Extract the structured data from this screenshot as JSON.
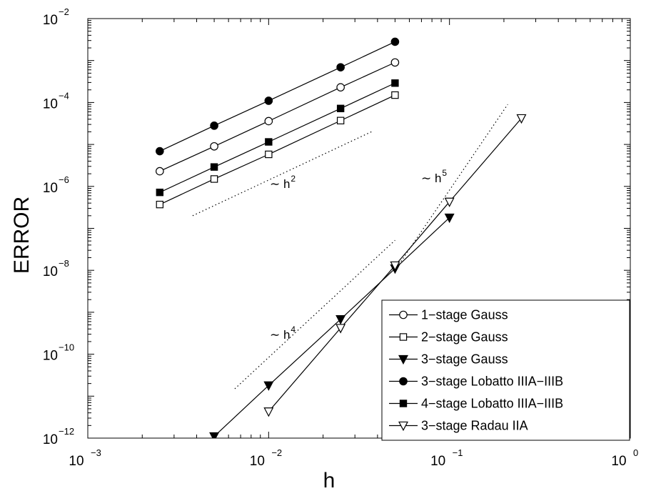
{
  "chart_data": {
    "type": "line",
    "xscale": "log",
    "yscale": "log",
    "xlabel": "h",
    "ylabel": "ERROR",
    "xlim": [
      0.001,
      1
    ],
    "ylim": [
      1e-12,
      0.01
    ],
    "xticks": [
      {
        "base": "10",
        "exp": "−3",
        "value": 0.001
      },
      {
        "base": "10",
        "exp": "−2",
        "value": 0.01
      },
      {
        "base": "10",
        "exp": "−1",
        "value": 0.1
      },
      {
        "base": "10",
        "exp": "0",
        "value": 1
      }
    ],
    "yticks": [
      {
        "base": "10",
        "exp": "−12",
        "value": 1e-12
      },
      {
        "base": "10",
        "exp": "−10",
        "value": 1e-10
      },
      {
        "base": "10",
        "exp": "−8",
        "value": 1e-08
      },
      {
        "base": "10",
        "exp": "−6",
        "value": 1e-06
      },
      {
        "base": "10",
        "exp": "−4",
        "value": 0.0001
      },
      {
        "base": "10",
        "exp": "−2",
        "value": 0.01
      }
    ],
    "legend_position": "lower-right",
    "series": [
      {
        "name": "1−stage Gauss",
        "marker": "circle-open",
        "x": [
          0.0025,
          0.005,
          0.01,
          0.025,
          0.05
        ],
        "y": [
          2.3e-06,
          9e-06,
          3.6e-05,
          0.00023,
          0.0009
        ]
      },
      {
        "name": "2−stage Gauss",
        "marker": "square-open",
        "x": [
          0.0025,
          0.005,
          0.01,
          0.025,
          0.05
        ],
        "y": [
          3.7e-07,
          1.5e-06,
          5.8e-06,
          3.7e-05,
          0.00015
        ]
      },
      {
        "name": "3−stage Gauss",
        "marker": "triangle-down-filled",
        "x": [
          0.005,
          0.01,
          0.025,
          0.05,
          0.1
        ],
        "y": [
          1.1e-12,
          1.8e-11,
          6.8e-10,
          1.1e-08,
          1.8e-07
        ]
      },
      {
        "name": "3−stage Lobatto IIIA−IIIB",
        "marker": "circle-filled",
        "x": [
          0.0025,
          0.005,
          0.01,
          0.025,
          0.05
        ],
        "y": [
          6.9e-06,
          2.8e-05,
          0.00011,
          0.00069,
          0.0028
        ]
      },
      {
        "name": "4−stage Lobatto IIIA−IIIB",
        "marker": "square-filled",
        "x": [
          0.0025,
          0.005,
          0.01,
          0.025,
          0.05
        ],
        "y": [
          7.2e-07,
          2.9e-06,
          1.15e-05,
          7.2e-05,
          0.00029
        ]
      },
      {
        "name": "3−stage Radau IIA",
        "marker": "triangle-down-open",
        "x": [
          0.01,
          0.025,
          0.05,
          0.1,
          0.25
        ],
        "y": [
          4.3e-12,
          4.2e-10,
          1.3e-08,
          4.3e-07,
          4.2e-05
        ]
      }
    ],
    "reference_lines": [
      {
        "label": "∼ h",
        "exp": "2",
        "x": [
          0.0038,
          0.037
        ],
        "y": [
          2e-07,
          2e-05
        ]
      },
      {
        "label": "∼ h",
        "exp": "4",
        "x": [
          0.0065,
          0.05
        ],
        "y": [
          1.5e-11,
          5.2e-08
        ]
      },
      {
        "label": "∼ h",
        "exp": "5",
        "x": [
          0.05,
          0.21
        ],
        "y": [
          1e-08,
          9e-05
        ]
      }
    ]
  },
  "colors": {
    "line": "#000000",
    "background": "#ffffff"
  }
}
